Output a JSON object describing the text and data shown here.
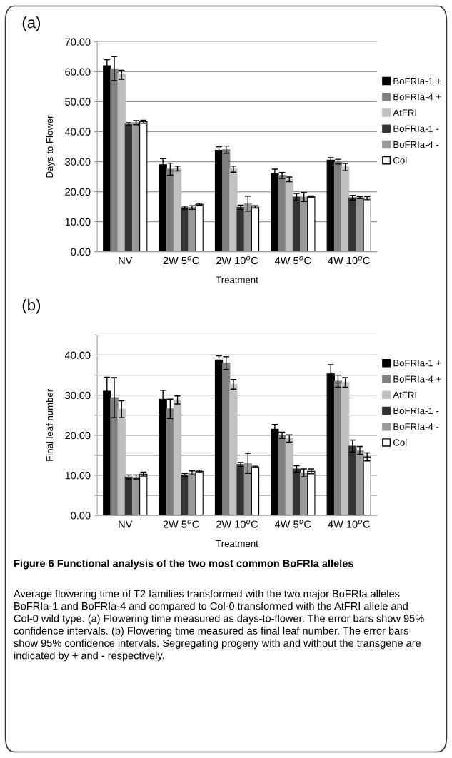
{
  "chart_data": [
    {
      "type": "bar",
      "title": "(a)",
      "xlabel": "Treatment",
      "ylabel": "Days to Flower",
      "categories": [
        "NV",
        "2W 5$^{o}$C",
        "2W 10$^{o}$C",
        "4W 5$^{o}$C",
        "4W 10$^{o}$C"
      ],
      "series": [
        {
          "name": "BoFRIa-1 +",
          "color": "#000000",
          "values": [
            62,
            29,
            33.8,
            26.2,
            30.5
          ],
          "errors": [
            2,
            2,
            1.2,
            1.3,
            0.8
          ]
        },
        {
          "name": "BoFRIa-4 +",
          "color": "#808080",
          "values": [
            61,
            27.5,
            34,
            25.4,
            30
          ],
          "errors": [
            4,
            2,
            1.2,
            1,
            0.8
          ]
        },
        {
          "name": "AtFRI",
          "color": "#c0c0c0",
          "values": [
            59,
            27.7,
            27.5,
            24.1,
            28.2
          ],
          "errors": [
            1.5,
            0.8,
            1,
            0.8,
            1.2
          ]
        },
        {
          "name": "BoFRIa-1 -",
          "color": "#333333",
          "values": [
            42.5,
            14.7,
            14.8,
            18.2,
            18
          ],
          "errors": [
            0.5,
            0.5,
            0.7,
            1.2,
            0.8
          ]
        },
        {
          "name": "BoFRIa-4 -",
          "color": "#999999",
          "values": [
            43,
            14.7,
            16,
            18.2,
            18
          ],
          "errors": [
            0.7,
            0.6,
            2.5,
            1.5,
            0.3
          ]
        },
        {
          "name": "Col",
          "color": "#ffffff",
          "values": [
            43.3,
            15.8,
            14.9,
            18.3,
            17.8
          ],
          "errors": [
            0.5,
            0.3,
            0.4,
            0.3,
            0.5
          ]
        }
      ],
      "ylim": [
        0,
        70
      ],
      "yticks": [
        {
          "value": 0,
          "label": "0.00"
        },
        {
          "value": 10,
          "label": "10.00"
        },
        {
          "value": 20,
          "label": "20.00"
        },
        {
          "value": 30,
          "label": "30.00"
        },
        {
          "value": 40,
          "label": "40.00"
        },
        {
          "value": 50,
          "label": "50.00"
        },
        {
          "value": 60,
          "label": "60.00"
        },
        {
          "value": 70,
          "label": "70.00"
        }
      ],
      "grid": "y",
      "legend": "right"
    },
    {
      "type": "bar",
      "title": "(b)",
      "xlabel": "Treatment",
      "ylabel": "Final leaf number",
      "categories": [
        "NV",
        "2W 5$^{o}$C",
        "2W 10$^{o}$C",
        "4W 5$^{o}$C",
        "4W 10$^{o}$C"
      ],
      "series": [
        {
          "name": "BoFRIa-1 +",
          "color": "#000000",
          "values": [
            31,
            29,
            38.8,
            21.5,
            35.3
          ],
          "errors": [
            3.5,
            2.2,
            1,
            1.2,
            2.3
          ]
        },
        {
          "name": "BoFRIa-4 +",
          "color": "#808080",
          "values": [
            29.4,
            26.6,
            38,
            20,
            33.5
          ],
          "errors": [
            5,
            2.4,
            1.6,
            0.8,
            1.5
          ]
        },
        {
          "name": "AtFRI",
          "color": "#c0c0c0",
          "values": [
            26.5,
            28.8,
            32.7,
            19.2,
            33.2
          ],
          "errors": [
            2.1,
            1,
            1.2,
            0.9,
            1.2
          ]
        },
        {
          "name": "BoFRIa-1 -",
          "color": "#333333",
          "values": [
            9.6,
            10.1,
            12.7,
            11.6,
            17.3
          ],
          "errors": [
            0.5,
            0.4,
            0.5,
            0.8,
            1.5
          ]
        },
        {
          "name": "BoFRIa-4 -",
          "color": "#999999",
          "values": [
            9.6,
            10.6,
            13,
            10.6,
            16.2
          ],
          "errors": [
            0.5,
            0.5,
            2.5,
            1,
            1
          ]
        },
        {
          "name": "Col",
          "color": "#ffffff",
          "values": [
            10.3,
            11,
            12.1,
            11,
            14.6
          ],
          "errors": [
            0.5,
            0.3,
            0.2,
            0.6,
            1
          ]
        }
      ],
      "ylim": [
        0,
        45
      ],
      "yticks": [
        {
          "value": 0,
          "label": "0.00"
        },
        {
          "value": 5,
          "label": null
        },
        {
          "value": 10,
          "label": "10.00"
        },
        {
          "value": 15,
          "label": null
        },
        {
          "value": 20,
          "label": "20.00"
        },
        {
          "value": 25,
          "label": null
        },
        {
          "value": 30,
          "label": "30.00"
        },
        {
          "value": 35,
          "label": null
        },
        {
          "value": 40,
          "label": "40.00"
        },
        {
          "value": 45,
          "label": null
        }
      ],
      "grid": "y",
      "legend": "right",
      "annotations": [
        "Figure 6 Functional analysis of the two most common BoFRIa alleles",
        "Average flowering time of T2 families transformed with the two major BoFRIa alleles BoFRIa-1 and BoFRIa-4 and compared to Col-0 transformed with the AtFRI allele and Col-0 wild type. (a) Flowering time measured as days-to-flower. The error bars show 95% confidence intervals. (b) Flowering time measured as final leaf number. The error bars show 95% confidence intervals. Segregating progeny with and without the transgene are indicated by + and - respectively."
      ]
    }
  ]
}
